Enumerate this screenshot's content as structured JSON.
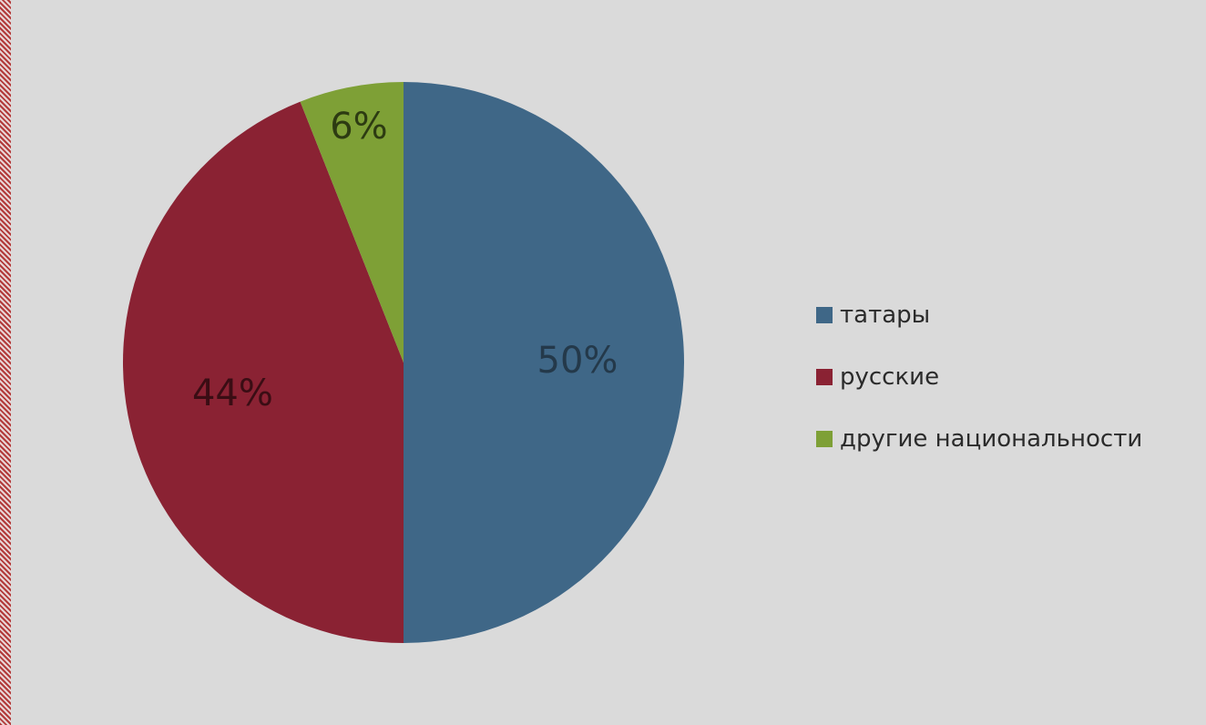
{
  "chart_data": {
    "type": "pie",
    "slices": [
      {
        "label": "татары",
        "value": 50,
        "display": "50%",
        "color": "#3f6787",
        "label_color": "#24394a"
      },
      {
        "label": "русские",
        "value": 44,
        "display": "44%",
        "color": "#8a2233",
        "label_color": "#3a0d14"
      },
      {
        "label": "другие национальности",
        "value": 6,
        "display": "6%",
        "color": "#7ea036",
        "label_color": "#2d3b12"
      }
    ],
    "start_angle_deg": 0,
    "direction": "clockwise",
    "legend_position": "right"
  },
  "legend": {
    "items": [
      {
        "label": "татары",
        "color": "#3f6787"
      },
      {
        "label": "русские",
        "color": "#8a2233"
      },
      {
        "label": "другие национальности",
        "color": "#7ea036"
      }
    ]
  },
  "colors": {
    "background": "#d9d9d9",
    "left_border": "#b23a3a"
  }
}
